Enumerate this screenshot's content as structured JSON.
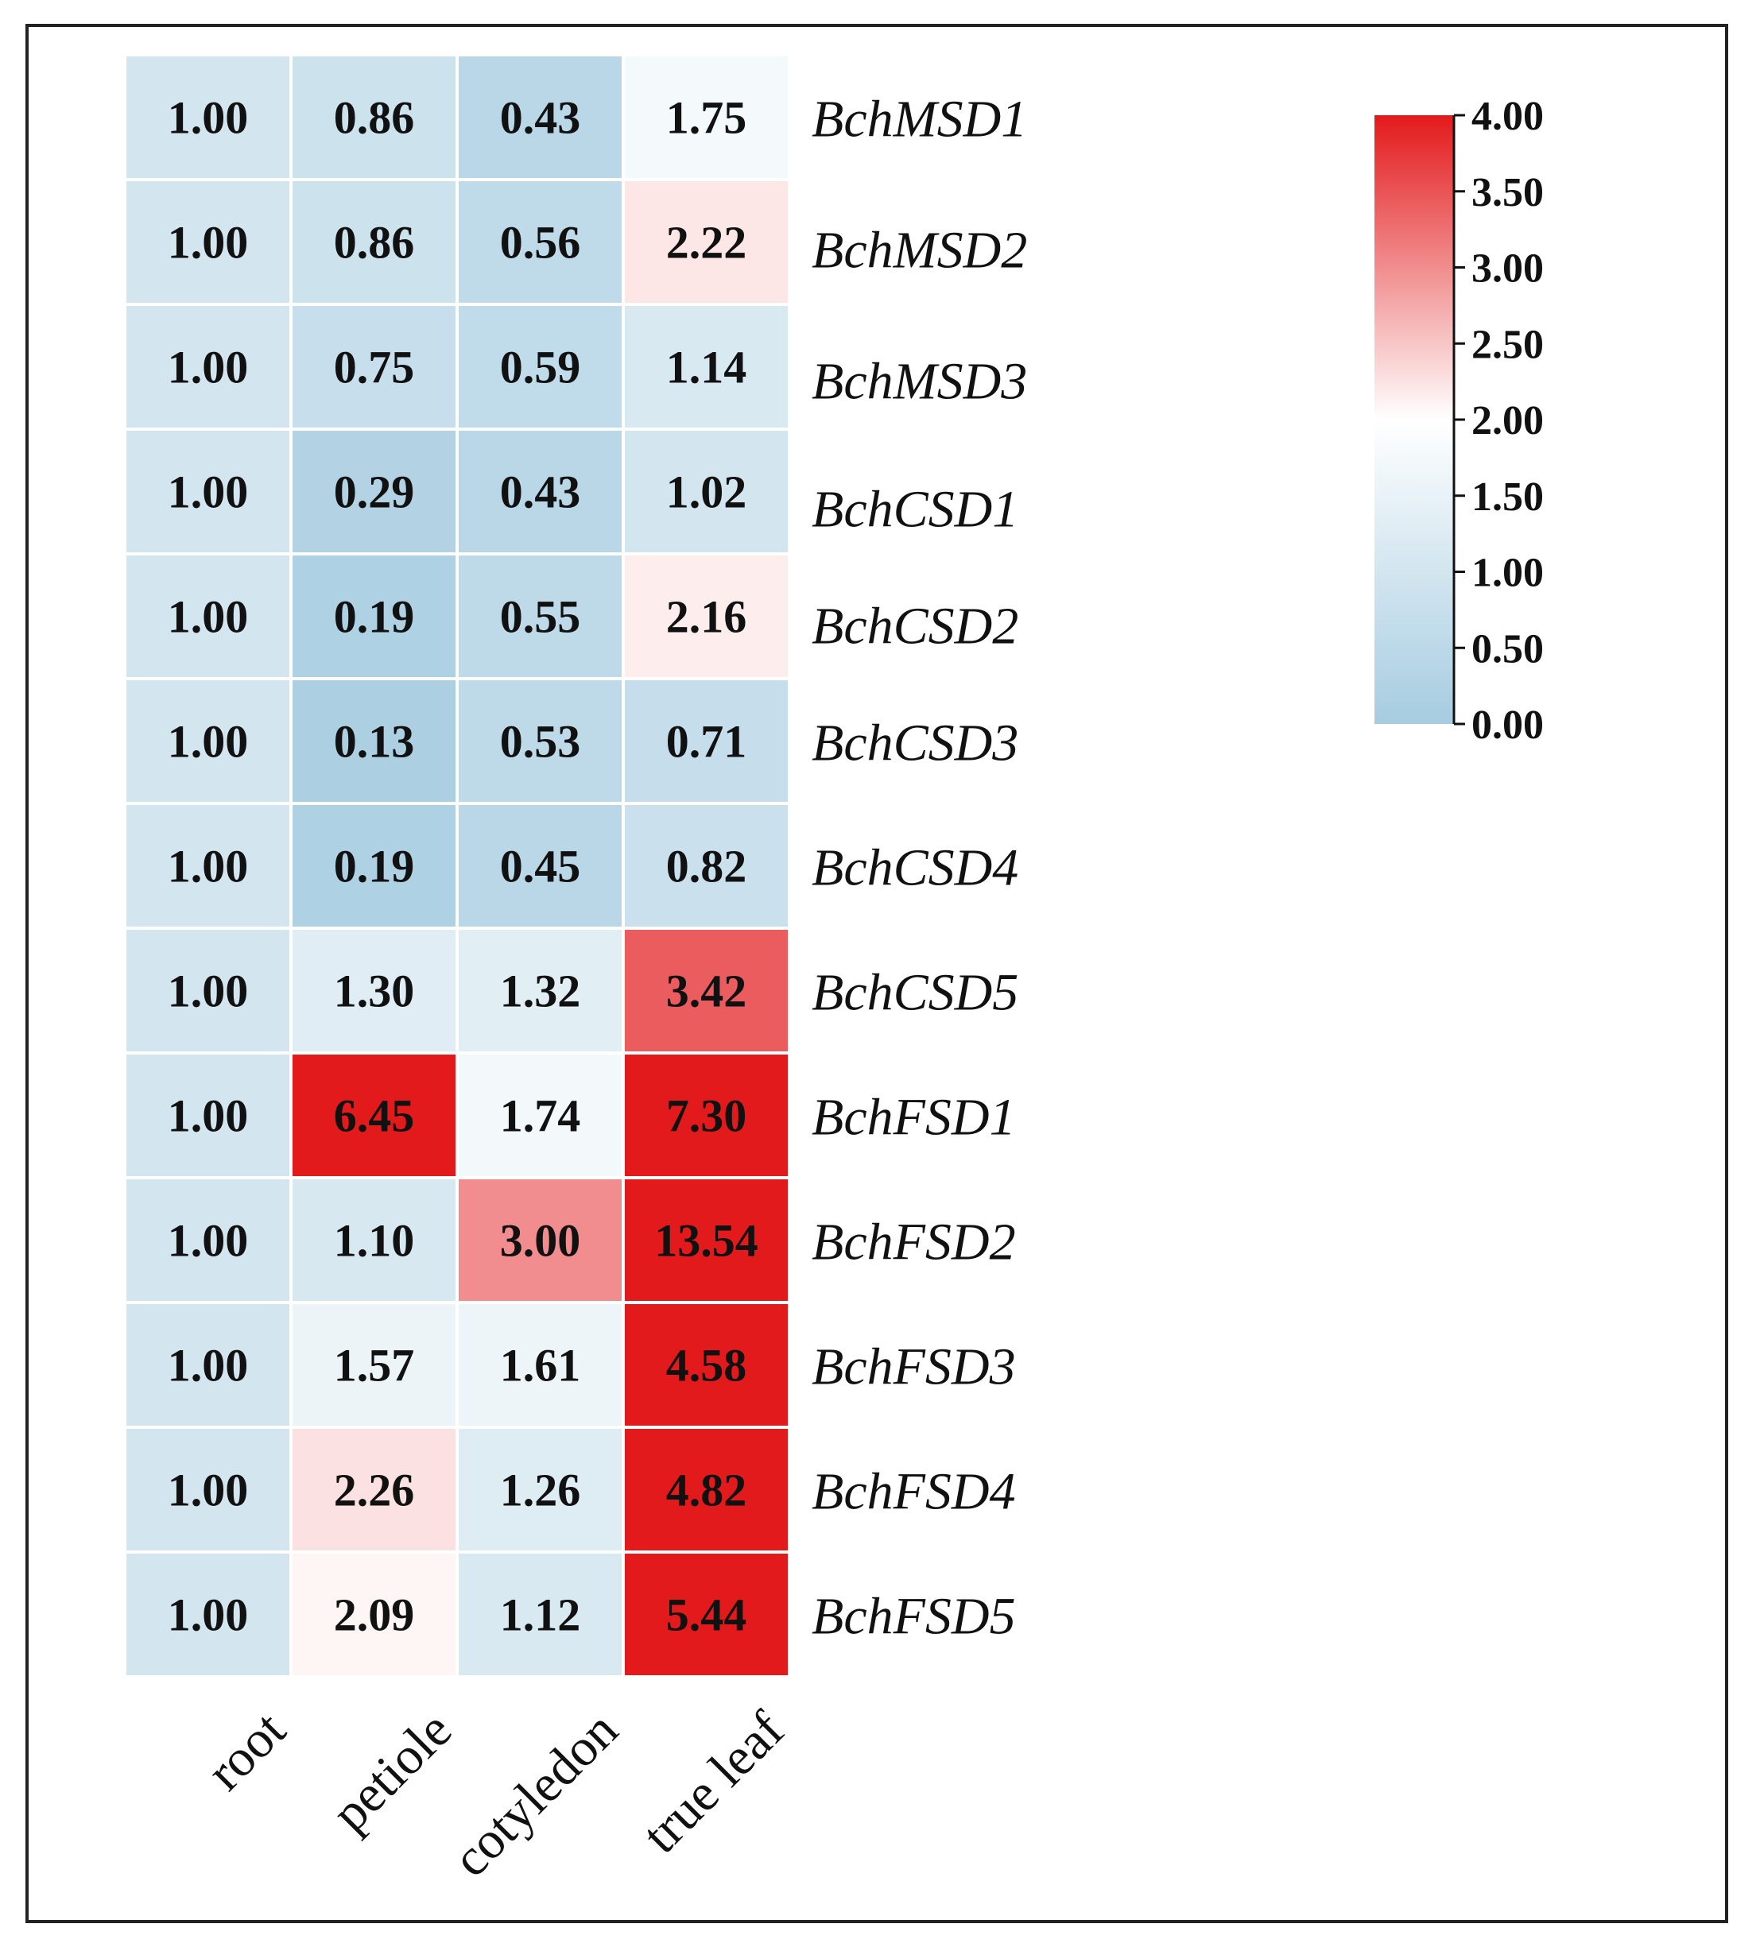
{
  "chart_data": {
    "type": "heatmap",
    "title": "",
    "columns": [
      "root",
      "petiole",
      "cotyledon",
      "true leaf"
    ],
    "rows": [
      "BchMSD1",
      "BchMSD2",
      "BchMSD3",
      "BchCSD1",
      "BchCSD2",
      "BchCSD3",
      "BchCSD4",
      "BchCSD5",
      "BchFSD1",
      "BchFSD2",
      "BchFSD3",
      "BchFSD4",
      "BchFSD5"
    ],
    "values": [
      [
        "1.00",
        "0.86",
        "0.43",
        "1.75"
      ],
      [
        "1.00",
        "0.86",
        "0.56",
        "2.22"
      ],
      [
        "1.00",
        "0.75",
        "0.59",
        "1.14"
      ],
      [
        "1.00",
        "0.29",
        "0.43",
        "1.02"
      ],
      [
        "1.00",
        "0.19",
        "0.55",
        "2.16"
      ],
      [
        "1.00",
        "0.13",
        "0.53",
        "0.71"
      ],
      [
        "1.00",
        "0.19",
        "0.45",
        "0.82"
      ],
      [
        "1.00",
        "1.30",
        "1.32",
        "3.42"
      ],
      [
        "1.00",
        "6.45",
        "1.74",
        "7.30"
      ],
      [
        "1.00",
        "1.10",
        "3.00",
        "13.54"
      ],
      [
        "1.00",
        "1.57",
        "1.61",
        "4.58"
      ],
      [
        "1.00",
        "2.26",
        "1.26",
        "4.82"
      ],
      [
        "1.00",
        "2.09",
        "1.12",
        "5.44"
      ]
    ],
    "colorbar": {
      "min": 0,
      "max": 4,
      "ticks": [
        "0.00",
        "0.50",
        "1.00",
        "1.50",
        "2.00",
        "2.50",
        "3.00",
        "3.50",
        "4.00"
      ],
      "colors": {
        "low": "#a6cce0",
        "mid": "#ffffff",
        "high": "#e31a1c"
      }
    }
  }
}
